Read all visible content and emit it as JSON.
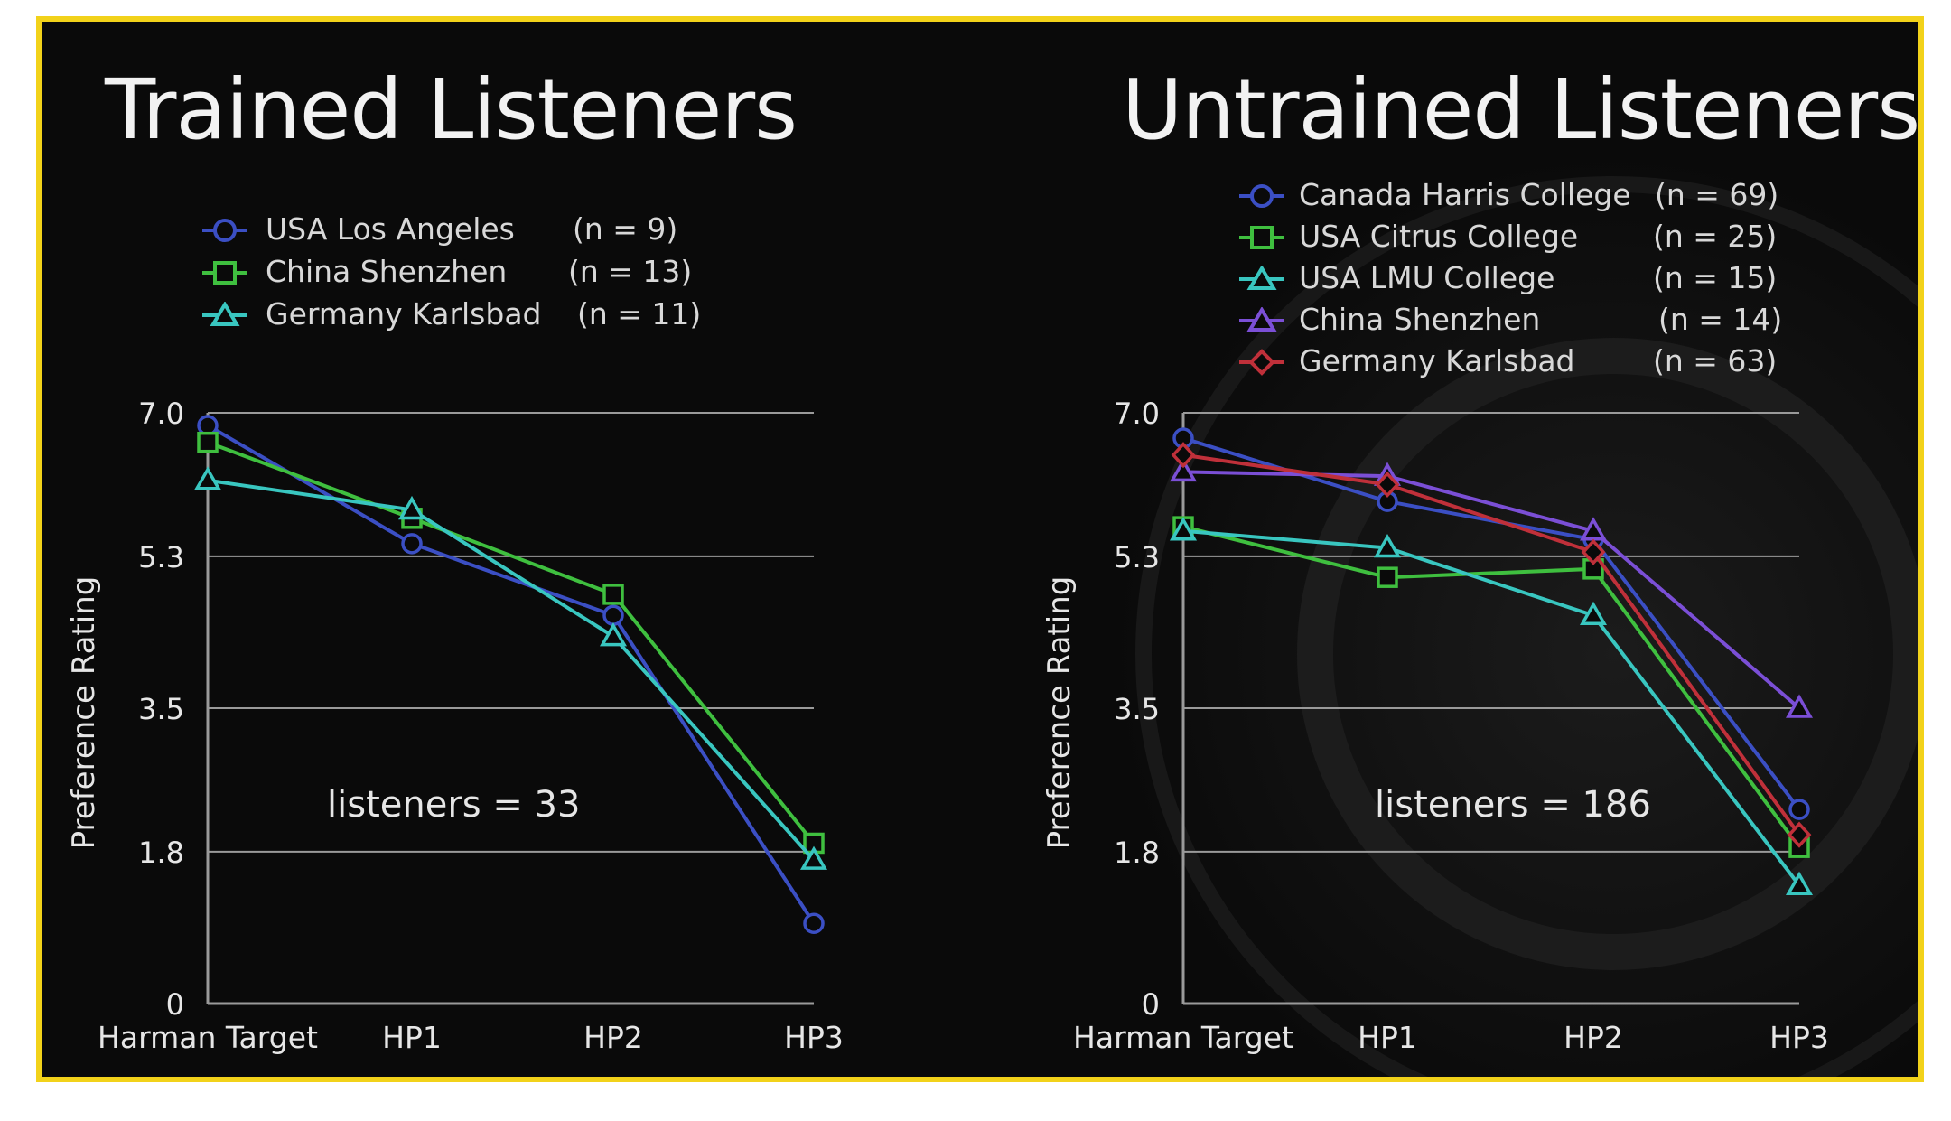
{
  "colors": {
    "frame": "#f2d21a",
    "background": "#0a0a0a",
    "blue": "#3b4fc4",
    "green": "#3fbf3f",
    "cyan": "#39c6c0",
    "purple": "#7b4fd6",
    "red": "#c0303a",
    "gridline": "#9a9a9a",
    "text": "#e6e6e6"
  },
  "chart_data": [
    {
      "type": "line",
      "title": "Trained Listeners",
      "xlabel": "",
      "ylabel": "Preference Rating",
      "categories": [
        "Harman Target",
        "HP1",
        "HP2",
        "HP3"
      ],
      "yticks": [
        "7.0",
        "5.3",
        "3.5",
        "1.8",
        "0"
      ],
      "ytick_values": [
        7.0,
        5.3,
        3.5,
        1.8,
        0
      ],
      "ylim": [
        0,
        7.0
      ],
      "grid": true,
      "legend_position": "top-left",
      "annotation": "listeners  = 33",
      "series": [
        {
          "name": "USA Los Angeles",
          "n_label": "(n = 9)",
          "marker": "circle",
          "color": "#3b4fc4",
          "values": [
            6.85,
            5.45,
            4.6,
            0.95
          ]
        },
        {
          "name": "China Shenzhen",
          "n_label": "(n = 13)",
          "marker": "square",
          "color": "#3fbf3f",
          "values": [
            6.65,
            5.75,
            4.85,
            1.9
          ]
        },
        {
          "name": "Germany Karlsbad",
          "n_label": "(n = 11)",
          "marker": "triangle",
          "color": "#39c6c0",
          "values": [
            6.2,
            5.85,
            4.35,
            1.7
          ]
        }
      ]
    },
    {
      "type": "line",
      "title": "Untrained Listeners",
      "xlabel": "",
      "ylabel": "Preference Rating",
      "categories": [
        "Harman Target",
        "HP1",
        "HP2",
        "HP3"
      ],
      "yticks": [
        "7.0",
        "5.3",
        "3.5",
        "1.8",
        "0"
      ],
      "ytick_values": [
        7.0,
        5.3,
        3.5,
        1.8,
        0
      ],
      "ylim": [
        0,
        7.0
      ],
      "grid": true,
      "legend_position": "top-right",
      "annotation": "listeners = 186",
      "series": [
        {
          "name": "Canada Harris College",
          "n_label": "(n = 69)",
          "marker": "circle",
          "color": "#3b4fc4",
          "values": [
            6.7,
            5.95,
            5.5,
            2.3
          ]
        },
        {
          "name": "USA Citrus College",
          "n_label": "(n = 25)",
          "marker": "square",
          "color": "#3fbf3f",
          "values": [
            5.65,
            5.05,
            5.15,
            1.85
          ]
        },
        {
          "name": "USA LMU College",
          "n_label": "(n = 15)",
          "marker": "triangle",
          "color": "#39c6c0",
          "values": [
            5.6,
            5.4,
            4.6,
            1.4
          ]
        },
        {
          "name": "China Shenzhen",
          "n_label": "(n = 14)",
          "marker": "triangle",
          "color": "#7b4fd6",
          "values": [
            6.3,
            6.25,
            5.6,
            3.5
          ]
        },
        {
          "name": "Germany Karlsbad",
          "n_label": "(n = 63)",
          "marker": "diamond",
          "color": "#c0303a",
          "values": [
            6.5,
            6.15,
            5.35,
            2.0
          ]
        }
      ]
    }
  ]
}
